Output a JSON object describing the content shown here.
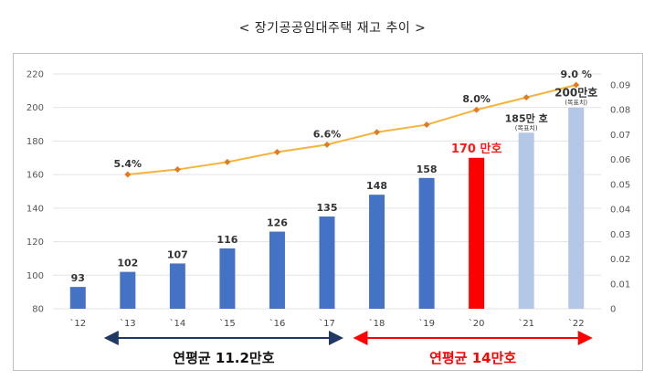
{
  "title": "< 장기공공임대주택 재고 추이 >",
  "chart_data": {
    "type": "bar+line",
    "categories": [
      "`12",
      "`13",
      "`14",
      "`15",
      "`16",
      "`17",
      "`18",
      "`19",
      "`20",
      "`21",
      "`22"
    ],
    "bar_values": [
      93,
      102,
      107,
      116,
      126,
      135,
      148,
      158,
      170,
      185,
      200
    ],
    "bar_labels": [
      "93",
      "102",
      "107",
      "116",
      "126",
      "135",
      "148",
      "158",
      "170 만호",
      "185만 호",
      "200만호"
    ],
    "bar_sublabels": [
      "",
      "",
      "",
      "",
      "",
      "",
      "",
      "",
      "",
      "(목표치)",
      "(목표치)"
    ],
    "bar_colors": [
      "#4472c4",
      "#4472c4",
      "#4472c4",
      "#4472c4",
      "#4472c4",
      "#4472c4",
      "#4472c4",
      "#4472c4",
      "#ff0000",
      "#b4c7e7",
      "#b4c7e7"
    ],
    "line_values": [
      null,
      0.054,
      0.056,
      0.059,
      0.063,
      0.066,
      0.071,
      0.074,
      0.08,
      0.085,
      0.09
    ],
    "line_labels": [
      "",
      "5.4%",
      "",
      "",
      "",
      "6.6%",
      "",
      "",
      "8.0%",
      "",
      "9.0 %"
    ],
    "line_label_colors": [
      "",
      "#333333",
      "",
      "",
      "",
      "#333333",
      "",
      "",
      "#ff1a1a",
      "",
      "#333333"
    ],
    "line_color": "#f5b43c",
    "line_marker_color": "#e07b20",
    "y_left": {
      "min": 80,
      "max": 220,
      "ticks": [
        "80",
        "100",
        "120",
        "140",
        "160",
        "180",
        "200",
        "220"
      ]
    },
    "y_right": {
      "min": 0,
      "max": 0.09,
      "ticks": [
        "0",
        "0.01",
        "0.02",
        "0.03",
        "0.04",
        "0.05",
        "0.06",
        "0.07",
        "0.08",
        "0.09"
      ]
    },
    "grid": true,
    "annotations": [
      {
        "text": "연평균 11.2만호",
        "from": "`13",
        "to": "`17",
        "color": "#1f3864",
        "text_color": "#111111"
      },
      {
        "text": "연평균 14만호",
        "from": "`18",
        "to": "`22",
        "color": "#ff0000",
        "text_color": "#ff0000"
      }
    ]
  }
}
